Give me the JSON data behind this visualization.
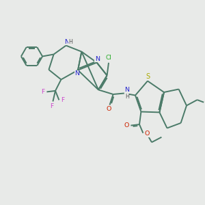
{
  "bg_color": "#e8eae8",
  "bond_color": "#4a7a68",
  "bond_lw": 1.4,
  "fig_size": [
    3.0,
    3.0
  ],
  "dpi": 100,
  "xlim": [
    0,
    10
  ],
  "ylim": [
    0,
    10
  ]
}
